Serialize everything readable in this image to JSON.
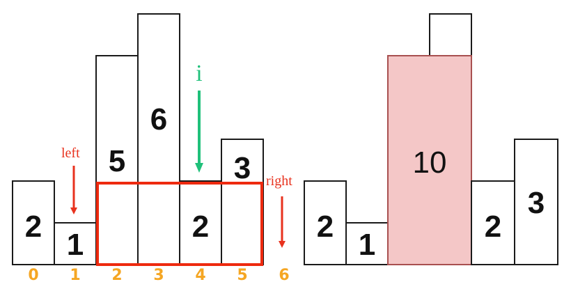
{
  "left_panel": {
    "bars": [
      {
        "height": 2,
        "label": "2"
      },
      {
        "height": 1,
        "label": "1"
      },
      {
        "height": 5,
        "label": "5"
      },
      {
        "height": 6,
        "label": "6"
      },
      {
        "height": 2,
        "label": "2"
      },
      {
        "height": 3,
        "label": "3"
      }
    ],
    "indices": [
      "0",
      "1",
      "2",
      "3",
      "4",
      "5",
      "6"
    ],
    "pointers": {
      "left": {
        "label": "left",
        "index": 1,
        "color": "#e8321e"
      },
      "right": {
        "label": "right",
        "index": 6,
        "color": "#e8321e"
      },
      "i": {
        "label": "i",
        "index": 4,
        "color": "#1fc07a"
      }
    },
    "selection": {
      "from_index": 2,
      "to_index": 5,
      "height": 2,
      "color": "#ee2a0f"
    }
  },
  "right_panel": {
    "bars": [
      {
        "height": 2,
        "label": "2"
      },
      {
        "height": 1,
        "label": "1"
      },
      {
        "height": 5,
        "label": "10",
        "highlight": true,
        "overhang": 6
      },
      {
        "height": 2,
        "label": "2"
      },
      {
        "height": 3,
        "label": "3"
      }
    ],
    "highlight_color": "#f4c7c7"
  }
}
